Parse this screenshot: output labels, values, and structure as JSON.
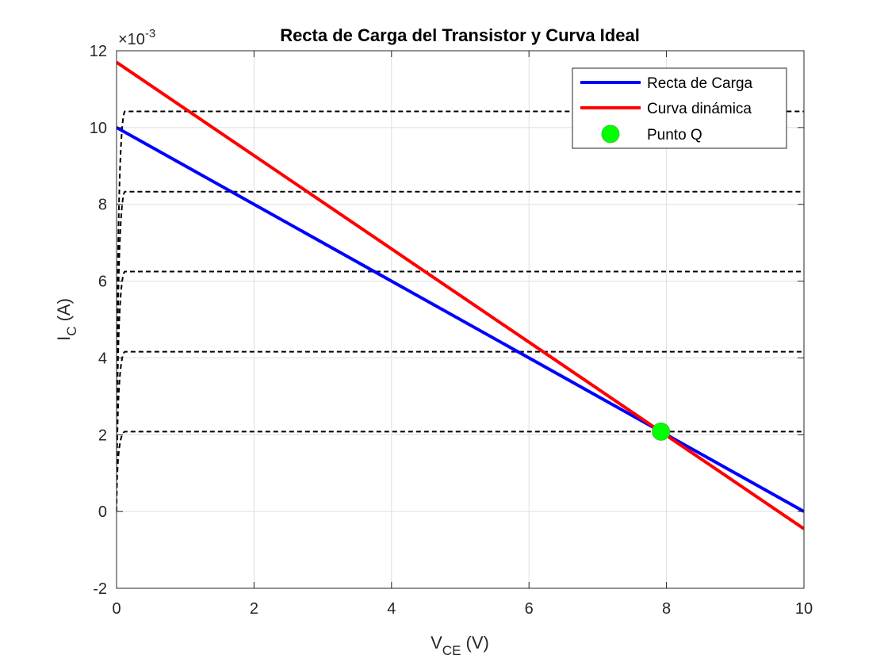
{
  "chart_data": {
    "type": "line",
    "title": "Recta de Carga del Transistor y Curva Ideal",
    "xlabel_main": "V",
    "xlabel_sub": "CE",
    "xlabel_unit": " (V)",
    "ylabel_main": "I",
    "ylabel_sub": "C",
    "ylabel_unit": " (A)",
    "y_exponent_prefix": "×10",
    "y_exponent": "-3",
    "xlim": [
      0,
      10
    ],
    "ylim": [
      -2,
      12
    ],
    "xticks": [
      0,
      2,
      4,
      6,
      8,
      10
    ],
    "xtick_labels": [
      "0",
      "2",
      "4",
      "6",
      "8",
      "10"
    ],
    "yticks": [
      -2,
      0,
      2,
      4,
      6,
      8,
      10,
      12
    ],
    "ytick_labels": [
      "-2",
      "0",
      "2",
      "4",
      "6",
      "8",
      "10",
      "12"
    ],
    "y_unit_scale": 0.001,
    "grid": true,
    "legend_position": "top-right",
    "series": [
      {
        "name": "Recta de Carga",
        "color": "#0000ff",
        "style": "solid",
        "x": [
          0,
          10
        ],
        "y": [
          0.01,
          0.0
        ]
      },
      {
        "name": "Curva dinámica",
        "color": "#ff0000",
        "style": "solid",
        "x": [
          0,
          10
        ],
        "y": [
          0.0117,
          -0.00045
        ]
      },
      {
        "name": "Punto Q",
        "color": "#00ff00",
        "style": "marker",
        "x": [
          7.92
        ],
        "y": [
          0.00208
        ]
      }
    ],
    "characteristic_curves": {
      "color": "#000000",
      "style": "dashed",
      "saturation_levels": [
        0.00208,
        0.00416,
        0.00625,
        0.00833,
        0.01042
      ],
      "knee_vce": 0.12
    }
  }
}
